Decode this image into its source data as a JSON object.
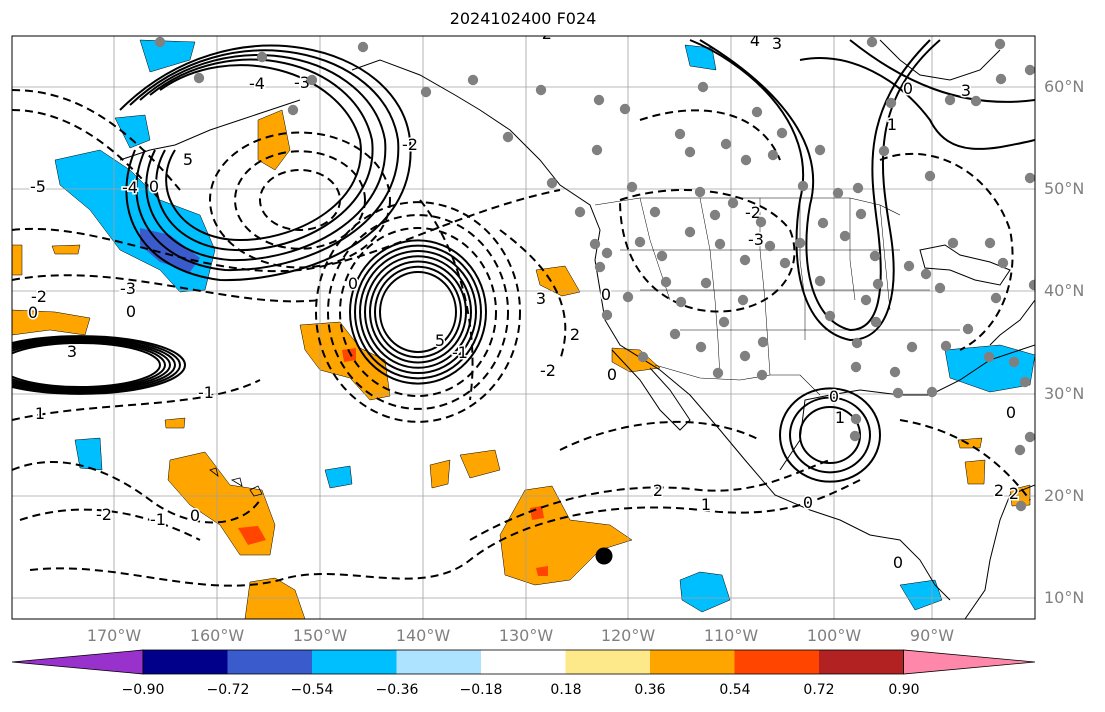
{
  "title": "2024102400 F024",
  "map": {
    "lat_labels": [
      "60°N",
      "50°N",
      "40°N",
      "30°N",
      "20°N",
      "10°N"
    ],
    "lon_labels": [
      "170°W",
      "160°W",
      "150°W",
      "140°W",
      "130°W",
      "120°W",
      "110°W",
      "100°W",
      "90°W"
    ],
    "contour_labels": [
      "-5",
      "-4",
      "-3",
      "-2",
      "-1",
      "0",
      "1",
      "2",
      "3",
      "4",
      "5"
    ],
    "colors": {
      "gridline": "#a0a0a0",
      "station_dot": "#808080",
      "marker_dot": "#000000",
      "positive_fill": "#ffa500",
      "positive_strong": "#ff4500",
      "negative_fill": "#00bfff",
      "negative_strong": "#3a5bcc"
    }
  },
  "colorbar": {
    "ticks": [
      "−0.90",
      "−0.72",
      "−0.54",
      "−0.36",
      "−0.18",
      "0.18",
      "0.36",
      "0.54",
      "0.72",
      "0.90"
    ],
    "colors": [
      "#9932cc",
      "#00008b",
      "#3a5bcc",
      "#00bfff",
      "#aee3ff",
      "#ffffff",
      "#fde98a",
      "#ffa500",
      "#ff4500",
      "#b22222",
      "#ff88aa"
    ]
  }
}
